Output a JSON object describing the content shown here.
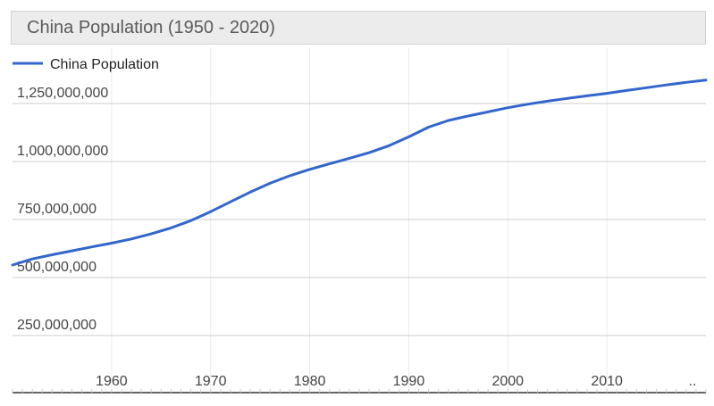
{
  "title": "China Population (1950 - 2020)",
  "colors": {
    "line": "#3366cc",
    "grid": "#cccccc",
    "vgrid": "#ebebeb",
    "axis_text": "#444444",
    "title_bg": "#ececec"
  },
  "chart_data": {
    "type": "line",
    "title": "China Population (1950 - 2020)",
    "xlabel": "",
    "ylabel": "",
    "legend": "top-left",
    "grid": true,
    "xlim": [
      1950,
      2020
    ],
    "ylim": [
      250000000,
      1500000000
    ],
    "x_ticks": [
      "1960",
      "1970",
      "1980",
      "1990",
      "2000",
      "2010",
      ".."
    ],
    "y_ticks": [
      "250,000,000",
      "500,000,000",
      "750,000,000",
      "1,000,000,000",
      "1,250,000,000"
    ],
    "series": [
      {
        "name": "China Population",
        "x": [
          1950,
          1952,
          1954,
          1956,
          1958,
          1960,
          1962,
          1964,
          1966,
          1968,
          1970,
          1972,
          1974,
          1976,
          1978,
          1980,
          1982,
          1984,
          1986,
          1988,
          1990,
          1992,
          1994,
          1996,
          1998,
          2000,
          2002,
          2004,
          2006,
          2008,
          2010,
          2012,
          2014,
          2016,
          2018,
          2020
        ],
        "values": [
          554000000,
          580000000,
          598000000,
          615000000,
          632000000,
          648000000,
          666000000,
          688000000,
          714000000,
          745000000,
          784000000,
          826000000,
          868000000,
          906000000,
          939000000,
          966000000,
          990000000,
          1014000000,
          1038000000,
          1068000000,
          1106000000,
          1148000000,
          1177000000,
          1196000000,
          1214000000,
          1232000000,
          1247000000,
          1260000000,
          1272000000,
          1283000000,
          1294000000,
          1306000000,
          1318000000,
          1330000000,
          1341000000,
          1351000000
        ]
      }
    ]
  }
}
